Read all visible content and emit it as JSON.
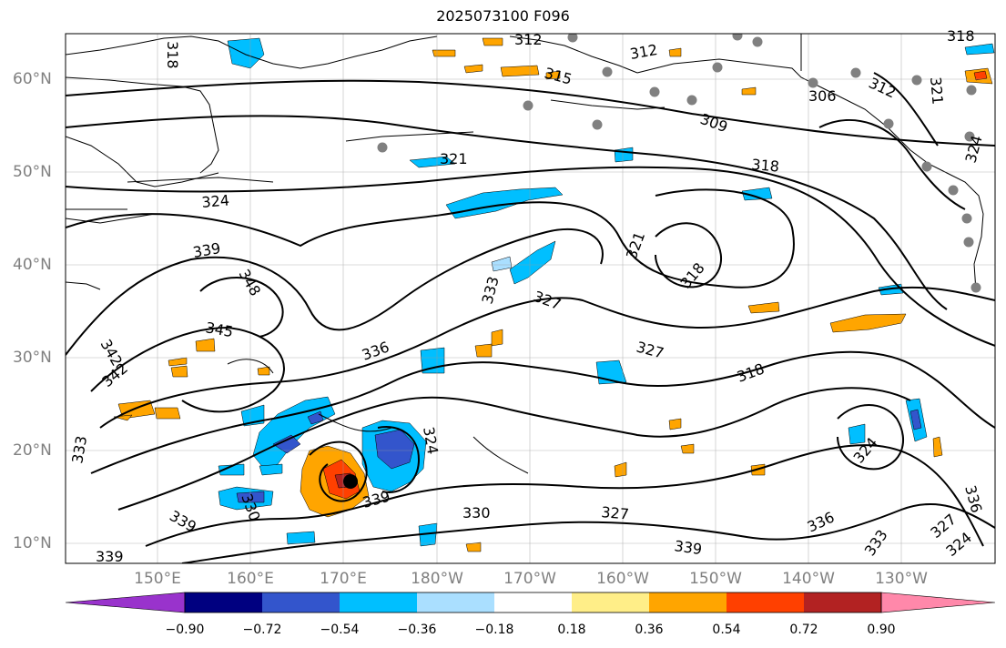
{
  "title": "2025073100 F096",
  "lat_labels": [
    "60°N",
    "50°N",
    "40°N",
    "30°N",
    "20°N",
    "10°N"
  ],
  "lon_labels": [
    "150°E",
    "160°E",
    "170°E",
    "180°W",
    "170°W",
    "160°W",
    "150°W",
    "140°W",
    "130°W"
  ],
  "colorbar": {
    "colors": [
      "#9933cc",
      "#000080",
      "#3355cc",
      "#00bfff",
      "#aadfff",
      "#ffffff",
      "#ffee88",
      "#ffa500",
      "#ff4000",
      "#b22222",
      "#ff88aa"
    ],
    "ticks": [
      "−0.90",
      "−0.72",
      "−0.54",
      "−0.36",
      "−0.18",
      "0.18",
      "0.36",
      "0.54",
      "0.72",
      "0.90"
    ]
  },
  "contour_labels": [
    "318",
    "312",
    "312",
    "318",
    "315",
    "309",
    "306",
    "312",
    "321",
    "324",
    "321",
    "318",
    "324",
    "339",
    "348",
    "321",
    "318",
    "345",
    "333",
    "327",
    "342",
    "342",
    "336",
    "327",
    "318",
    "333",
    "324",
    "339",
    "330",
    "330",
    "327",
    "339",
    "336",
    "336",
    "339",
    "333",
    "327",
    "324",
    "324",
    "339"
  ]
}
